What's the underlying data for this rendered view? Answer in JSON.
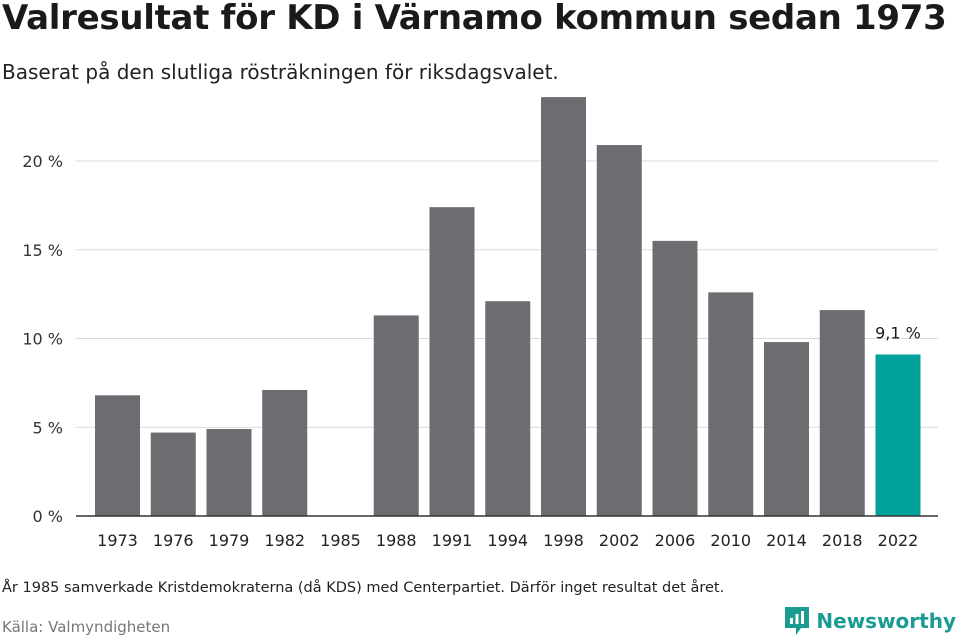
{
  "header": {
    "title": "Valresultat för KD i Värnamo kommun sedan 1973",
    "subtitle": "Baserat på den slutliga rösträkningen för riksdagsvalet."
  },
  "footer": {
    "note": "År 1985 samverkade Kristdemokraterna (då KDS) med Centerpartiet. Därför inget resultat det året.",
    "source": "Källa: Valmyndigheten",
    "brand": "Newsworthy",
    "brand_icon": "newsworthy-logo-icon"
  },
  "colors": {
    "bar": "#6d6c71",
    "highlight": "#00a19a",
    "grid": "#d9d9d9",
    "axis": "#333333",
    "brand": "#1a9c93"
  },
  "chart_data": {
    "type": "bar",
    "categories": [
      "1973",
      "1976",
      "1979",
      "1982",
      "1985",
      "1988",
      "1991",
      "1994",
      "1998",
      "2002",
      "2006",
      "2010",
      "2014",
      "2018",
      "2022"
    ],
    "values": [
      6.8,
      4.7,
      4.9,
      7.1,
      null,
      11.3,
      17.4,
      12.1,
      23.6,
      20.9,
      15.5,
      12.6,
      9.8,
      11.6,
      9.1
    ],
    "highlight_index": 14,
    "highlight_label": "9,1 %",
    "y_ticks": [
      0,
      5,
      10,
      15,
      20
    ],
    "y_tick_labels": [
      "0 %",
      "5 %",
      "10 %",
      "15 %",
      "20 %"
    ],
    "ylim": [
      0,
      24
    ],
    "grid": true,
    "legend": "none"
  }
}
